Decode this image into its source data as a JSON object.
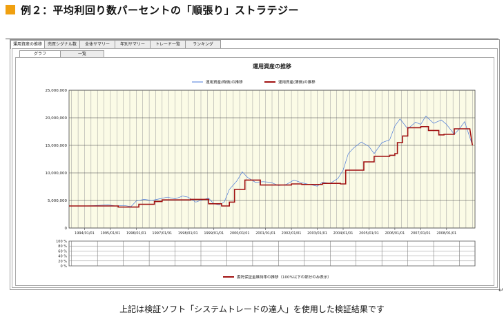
{
  "header": {
    "title": "例２：平均利回り数パーセントの「順張り」ストラテジー",
    "accent_color": "#f0a010"
  },
  "tabs": [
    {
      "label": "運用資産の推移",
      "active": true
    },
    {
      "label": "売買シグナル数",
      "active": false
    },
    {
      "label": "全体サマリー",
      "active": false
    },
    {
      "label": "年別サマリー",
      "active": false
    },
    {
      "label": "トレード一覧",
      "active": false
    },
    {
      "label": "ランキング",
      "active": false
    }
  ],
  "subtabs": [
    {
      "label": "グラフ",
      "active": true
    },
    {
      "label": "一覧",
      "active": false
    }
  ],
  "chart_data": [
    {
      "type": "line",
      "title": "運用資産の推移",
      "legend_position": "top",
      "grid": true,
      "background": "#fbfbe6",
      "xlabel": "",
      "ylabel": "",
      "xlim": [
        1993.4,
        2009.1
      ],
      "ylim": [
        0,
        25000000
      ],
      "x_tick_values": [
        1994,
        1995,
        1996,
        1997,
        1998,
        1999,
        2000,
        2001,
        2002,
        2003,
        2004,
        2005,
        2006,
        2007,
        2008
      ],
      "x_tick_labels": [
        "1994/01/01",
        "1995/01/01",
        "1996/01/01",
        "1997/01/01",
        "1998/01/01",
        "1999/01/01",
        "2000/01/01",
        "2001/01/01",
        "2002/01/01",
        "2003/01/01",
        "2004/01/01",
        "2005/01/01",
        "2006/01/01",
        "2007/01/01",
        "2008/01/01"
      ],
      "y_ticks": [
        0,
        5000000,
        10000000,
        15000000,
        20000000,
        25000000
      ],
      "y_tick_labels": [
        "0",
        "5,000,000",
        "10,000,000",
        "15,000,000",
        "20,000,000",
        "25,000,000"
      ],
      "series": [
        {
          "name": "運用資産(時価)の推移",
          "color": "#4a78d8",
          "x": [
            1993.4,
            1994.0,
            1994.5,
            1994.9,
            1995.2,
            1995.5,
            1995.8,
            1996.0,
            1996.3,
            1996.6,
            1996.9,
            1997.2,
            1997.5,
            1997.8,
            1998.0,
            1998.3,
            1998.6,
            1998.8,
            1999.0,
            1999.2,
            1999.4,
            1999.6,
            1999.9,
            2000.1,
            2000.3,
            2000.6,
            2000.9,
            2001.2,
            2001.5,
            2001.8,
            2002.1,
            2002.4,
            2002.7,
            2003.0,
            2003.2,
            2003.5,
            2003.8,
            2004.0,
            2004.2,
            2004.4,
            2004.7,
            2005.0,
            2005.2,
            2005.5,
            2005.8,
            2006.0,
            2006.2,
            2006.5,
            2006.8,
            2007.0,
            2007.2,
            2007.5,
            2007.8,
            2008.0,
            2008.3,
            2008.5,
            2008.7,
            2009.0
          ],
          "y": [
            4000000,
            4000000,
            4100000,
            4200000,
            4000000,
            4100000,
            3900000,
            4900000,
            5200000,
            5000000,
            5300000,
            5600000,
            5300000,
            5800000,
            5600000,
            4700000,
            5200000,
            5400000,
            4400000,
            4200000,
            4700000,
            7000000,
            8600000,
            10200000,
            9200000,
            8300000,
            8400000,
            8300000,
            7700000,
            7900000,
            8700000,
            8200000,
            7900000,
            7600000,
            8300000,
            8100000,
            9000000,
            10500000,
            13500000,
            14500000,
            15600000,
            14800000,
            13500000,
            15500000,
            16000000,
            18500000,
            19800000,
            18000000,
            19200000,
            18800000,
            20300000,
            19000000,
            19600000,
            18800000,
            17000000,
            18000000,
            19300000,
            15000000
          ]
        },
        {
          "name": "運用資産(簿価)の推移",
          "color": "#a01010",
          "x": [
            1993.4,
            1995.3,
            1995.3,
            1996.1,
            1996.1,
            1996.7,
            1996.7,
            1997.0,
            1997.0,
            1998.1,
            1998.1,
            1998.8,
            1998.8,
            1999.3,
            1999.3,
            1999.6,
            1999.6,
            1999.8,
            1999.8,
            2000.2,
            2000.2,
            2000.8,
            2000.8,
            2002.0,
            2002.0,
            2002.4,
            2002.4,
            2003.2,
            2003.2,
            2003.9,
            2003.9,
            2004.1,
            2004.1,
            2004.8,
            2004.8,
            2005.2,
            2005.2,
            2005.8,
            2005.8,
            2006.0,
            2006.0,
            2006.1,
            2006.1,
            2006.3,
            2006.3,
            2006.5,
            2006.5,
            2007.0,
            2007.0,
            2007.3,
            2007.3,
            2007.7,
            2007.7,
            2007.9,
            2007.9,
            2008.3,
            2008.3,
            2008.9,
            2009.0
          ],
          "y": [
            4000000,
            4000000,
            3800000,
            3800000,
            4300000,
            4300000,
            4800000,
            4800000,
            5100000,
            5100000,
            5200000,
            5200000,
            4400000,
            4400000,
            4000000,
            4000000,
            4700000,
            4700000,
            7000000,
            7000000,
            8700000,
            8700000,
            7800000,
            7800000,
            8000000,
            8000000,
            7900000,
            7900000,
            8100000,
            8100000,
            8000000,
            8000000,
            10500000,
            10500000,
            12000000,
            12000000,
            13000000,
            13000000,
            13200000,
            13200000,
            13500000,
            13500000,
            15500000,
            15500000,
            16700000,
            16700000,
            18200000,
            18200000,
            18400000,
            18400000,
            17700000,
            17700000,
            16900000,
            16900000,
            17000000,
            17000000,
            18000000,
            18000000,
            15000000
          ]
        }
      ]
    },
    {
      "type": "line",
      "title": "",
      "grid": true,
      "xlim": [
        1993.4,
        2009.1
      ],
      "ylim": [
        0,
        100
      ],
      "y_ticks": [
        0,
        20,
        40,
        60,
        80,
        100
      ],
      "y_tick_labels": [
        "0 %",
        "20 %",
        "40 %",
        "60 %",
        "80 %",
        "100 %"
      ],
      "series": [
        {
          "name": "委託保証金維持率の推移（100%以下の部分のみ表示）",
          "color": "#a01010",
          "x": [],
          "y": []
        }
      ]
    }
  ],
  "caption": "上記は検証ソフト「システムトレードの達人」を使用した検証結果です",
  "return_mark": "↵"
}
